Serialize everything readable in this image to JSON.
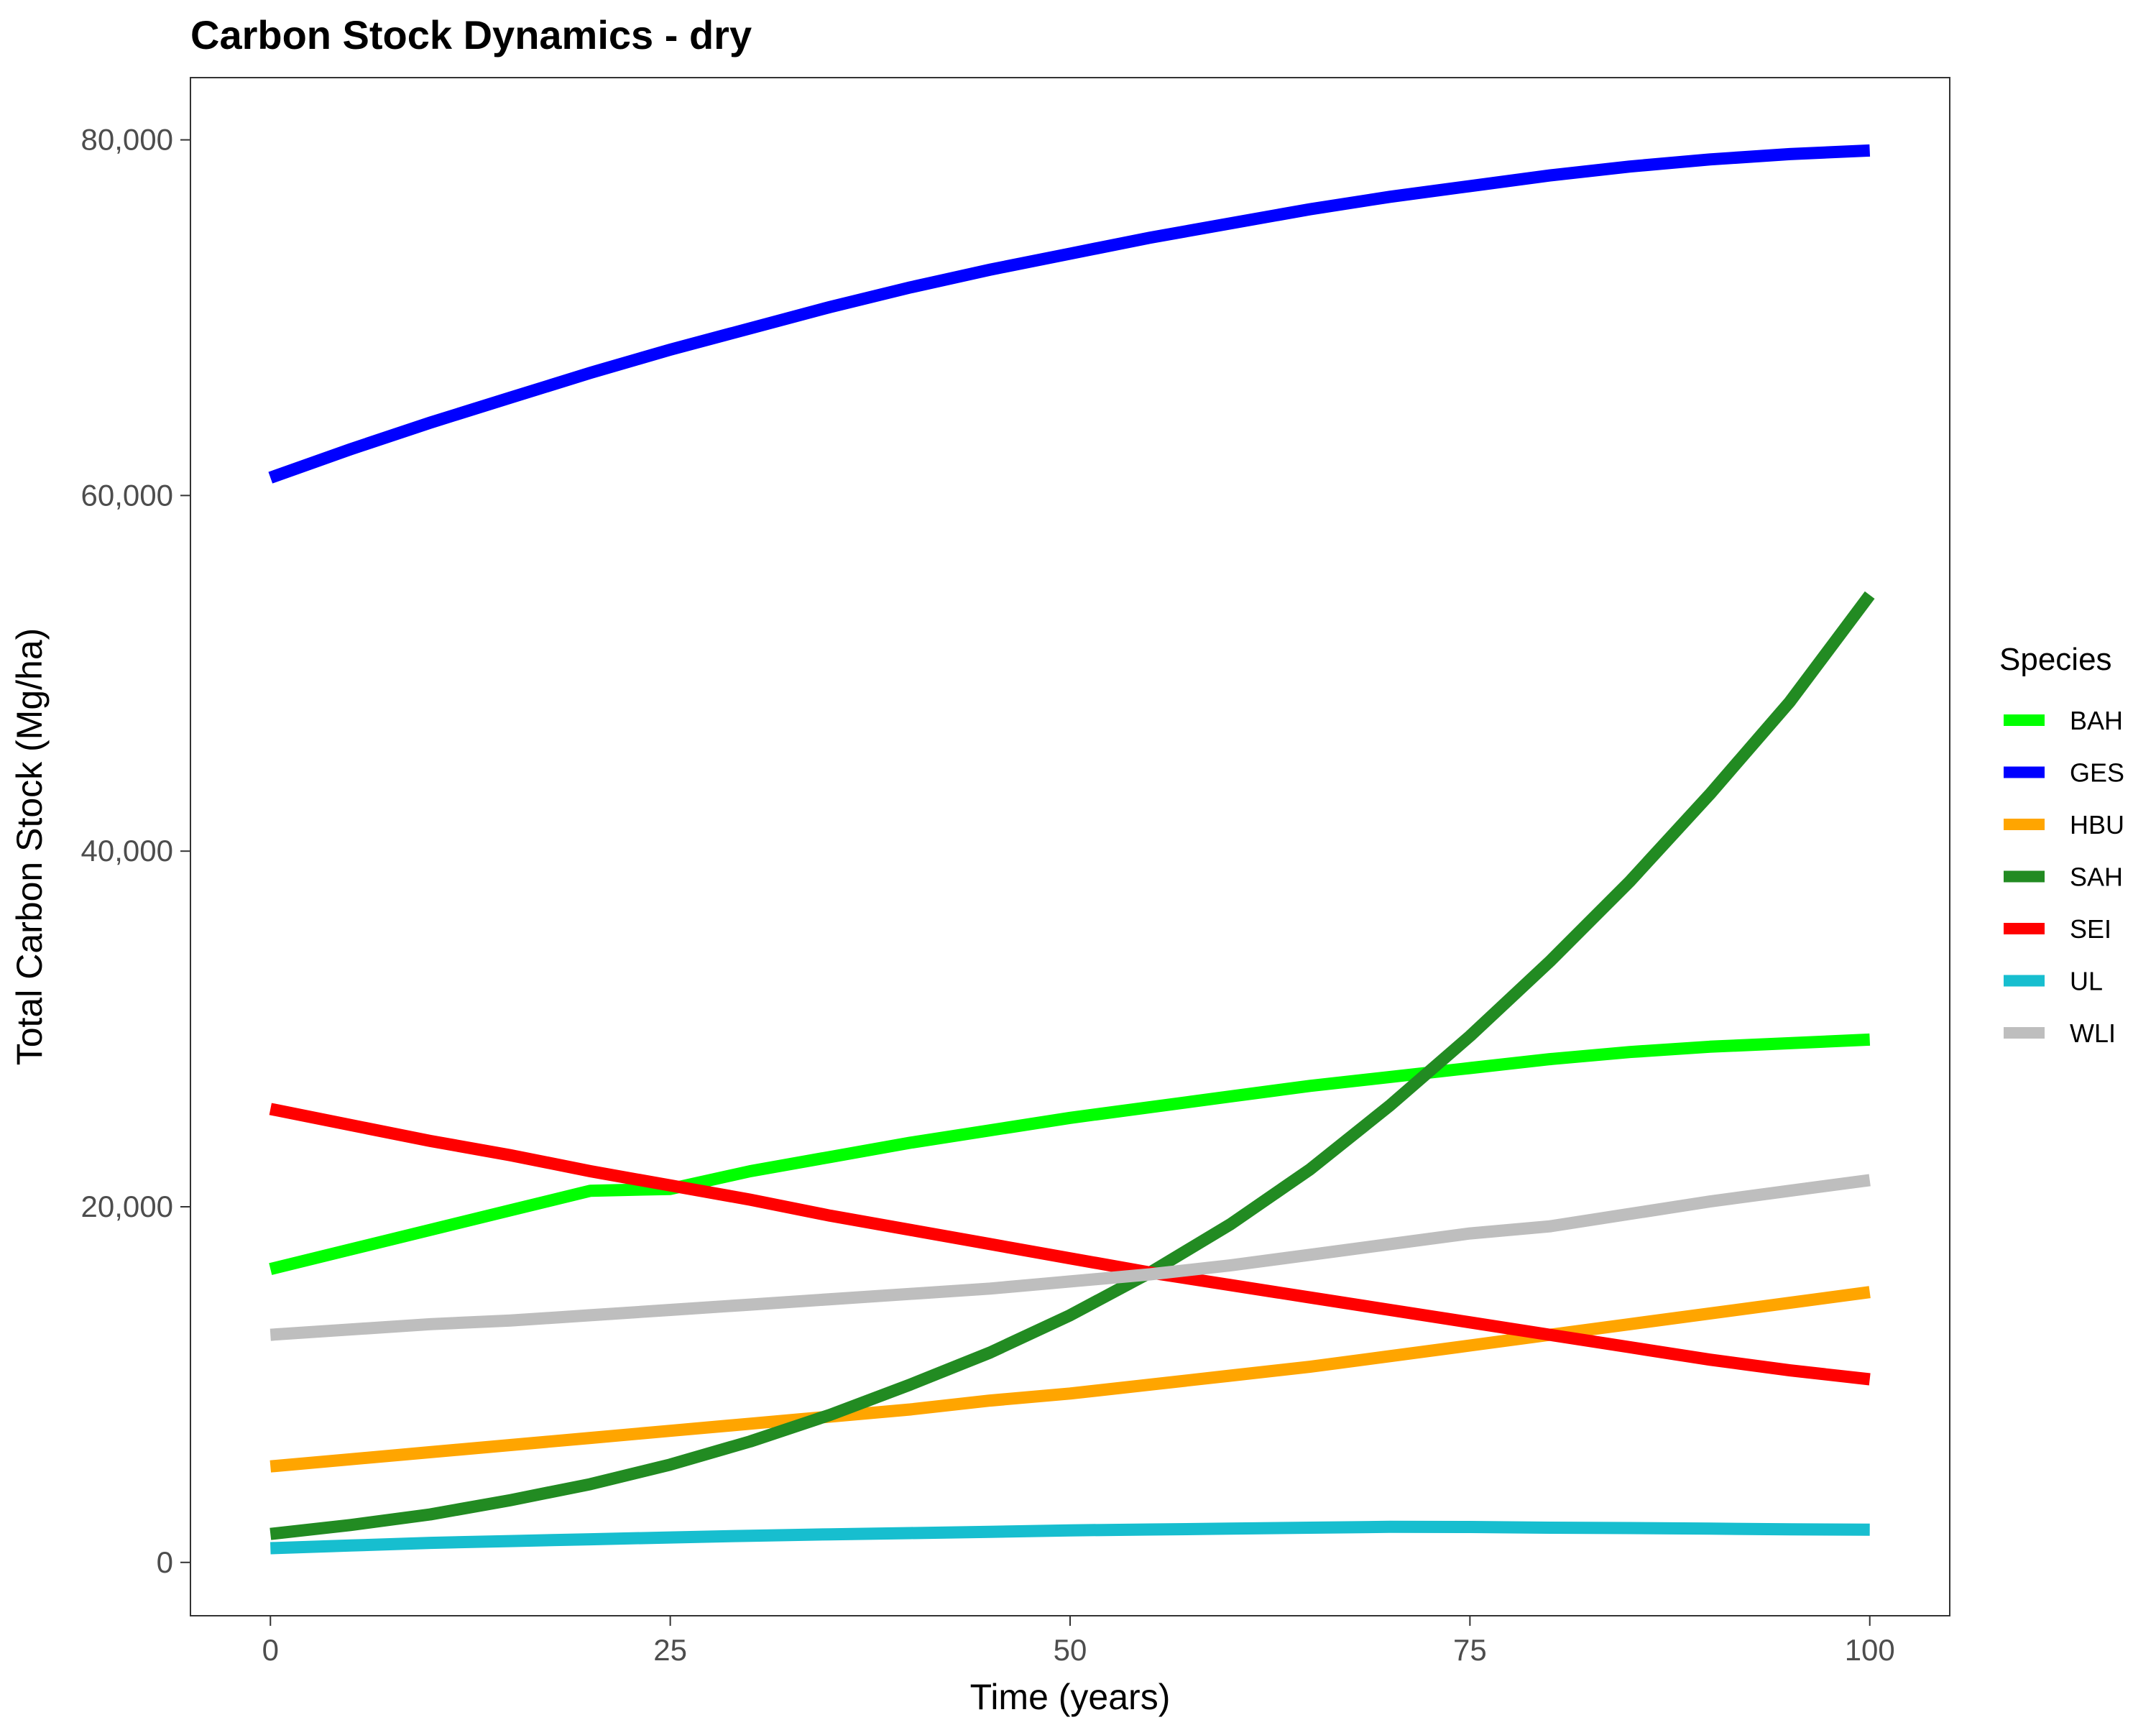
{
  "chart_data": {
    "type": "line",
    "title": "Carbon Stock Dynamics - dry",
    "xlabel": "Time (years)",
    "ylabel": "Total Carbon Stock (Mg/ha)",
    "xlim": [
      -5,
      105
    ],
    "ylim": [
      -3000,
      83500
    ],
    "x_ticks": [
      0,
      25,
      50,
      75,
      100
    ],
    "x_tick_labels": [
      "0",
      "25",
      "50",
      "75",
      "100"
    ],
    "y_ticks": [
      0,
      20000,
      40000,
      60000,
      80000
    ],
    "y_tick_labels": [
      "0",
      "20,000",
      "40,000",
      "60,000",
      "80,000"
    ],
    "grid": false,
    "legend_title": "Species",
    "legend_position": "right",
    "x": [
      0,
      5,
      10,
      15,
      20,
      25,
      30,
      35,
      40,
      45,
      50,
      55,
      60,
      65,
      70,
      75,
      80,
      85,
      90,
      95,
      100
    ],
    "series": [
      {
        "name": "BAH",
        "color": "#00ff00",
        "values": [
          16500,
          17600,
          18700,
          19800,
          20900,
          21000,
          22000,
          22800,
          23600,
          24300,
          25000,
          25600,
          26200,
          26800,
          27300,
          27800,
          28300,
          28700,
          29000,
          29200,
          29400
        ]
      },
      {
        "name": "GES",
        "color": "#0000ff",
        "values": [
          61000,
          62600,
          64100,
          65500,
          66900,
          68200,
          69400,
          70600,
          71700,
          72700,
          73600,
          74500,
          75300,
          76100,
          76800,
          77400,
          78000,
          78500,
          78900,
          79200,
          79400
        ]
      },
      {
        "name": "HBU",
        "color": "#ffa500",
        "values": [
          5400,
          5800,
          6200,
          6600,
          7000,
          7400,
          7800,
          8200,
          8600,
          9100,
          9500,
          10000,
          10500,
          11000,
          11600,
          12200,
          12800,
          13400,
          14000,
          14600,
          15200
        ]
      },
      {
        "name": "SAH",
        "color": "#228b22",
        "values": [
          1600,
          2100,
          2700,
          3500,
          4400,
          5500,
          6800,
          8300,
          10000,
          11800,
          13900,
          16300,
          19000,
          22100,
          25700,
          29600,
          33800,
          38300,
          43200,
          48400,
          54400
        ]
      },
      {
        "name": "SEI",
        "color": "#ff0000",
        "values": [
          25500,
          24600,
          23700,
          22900,
          22000,
          21200,
          20400,
          19500,
          18700,
          17900,
          17100,
          16300,
          15600,
          14900,
          14200,
          13500,
          12800,
          12100,
          11400,
          10800,
          10300
        ]
      },
      {
        "name": "UL",
        "color": "#17becf",
        "values": [
          800,
          950,
          1100,
          1200,
          1300,
          1400,
          1500,
          1580,
          1650,
          1720,
          1800,
          1850,
          1900,
          1950,
          2000,
          1990,
          1950,
          1930,
          1900,
          1860,
          1840
        ]
      },
      {
        "name": "WLI",
        "color": "#bebebe",
        "values": [
          12800,
          13100,
          13400,
          13600,
          13900,
          14200,
          14500,
          14800,
          15100,
          15400,
          15800,
          16200,
          16700,
          17300,
          17900,
          18500,
          18900,
          19600,
          20300,
          20900,
          21500
        ]
      }
    ]
  }
}
